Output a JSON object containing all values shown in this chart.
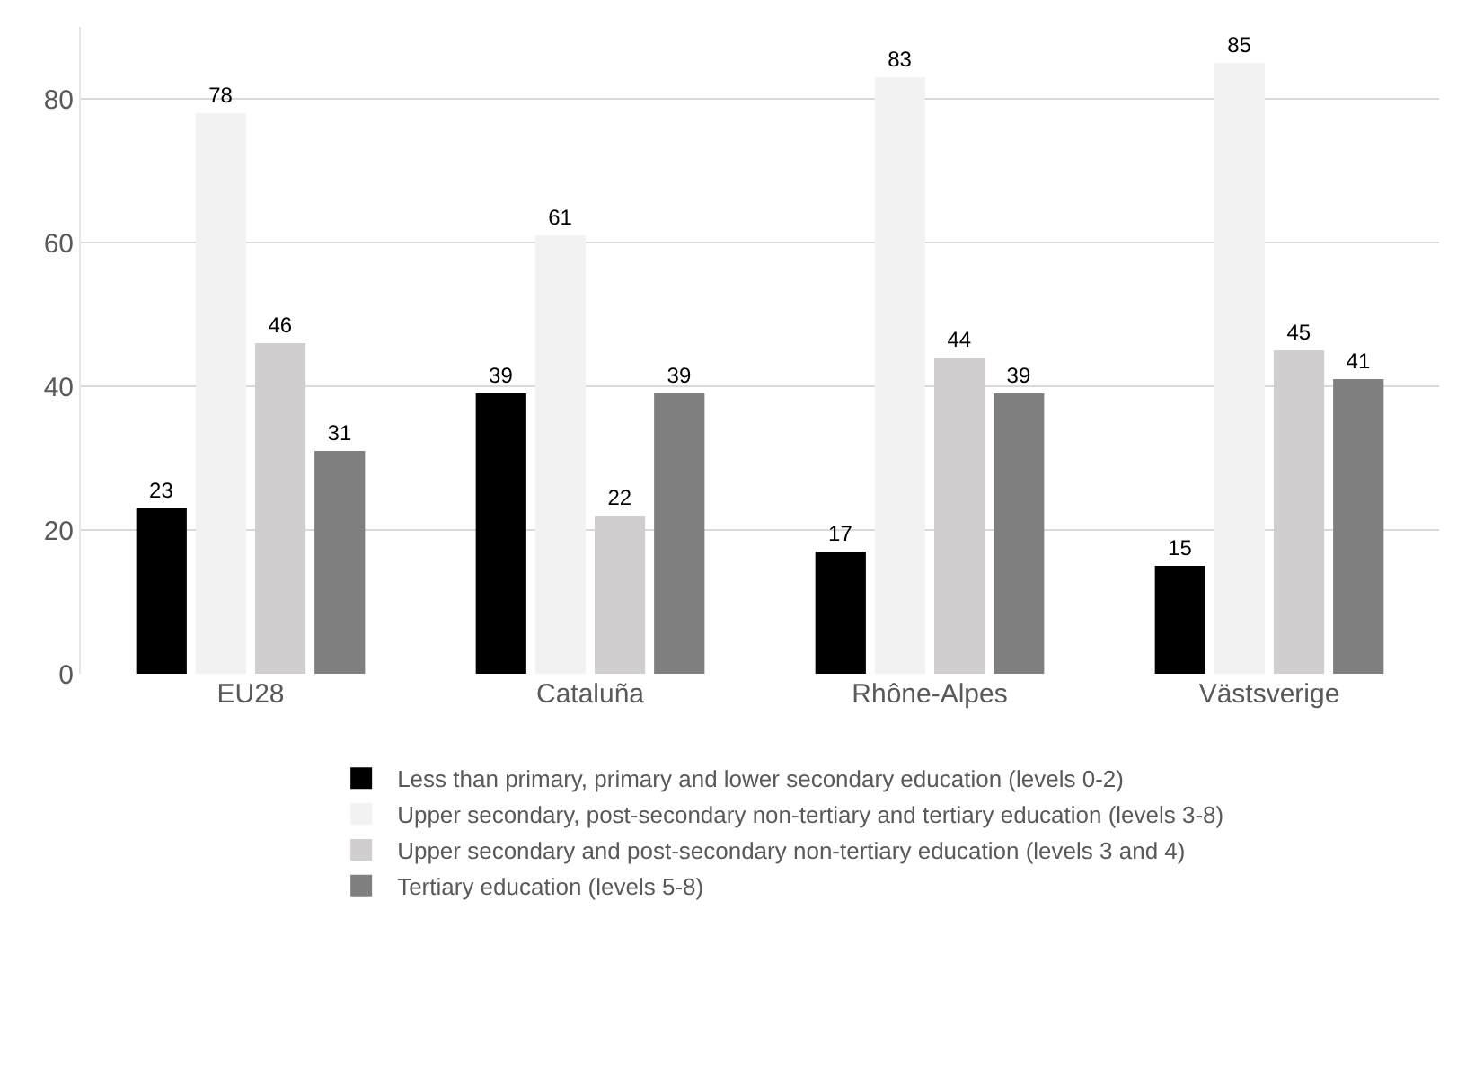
{
  "chart_data": {
    "type": "bar",
    "categories": [
      "EU28",
      "Cataluña",
      "Rhône-Alpes",
      "Västsverige"
    ],
    "series": [
      {
        "name": "Less than primary, primary and lower secondary education (levels 0-2)",
        "color": "#000000",
        "values": [
          23,
          39,
          17,
          15
        ]
      },
      {
        "name": "Upper secondary, post-secondary non-tertiary and tertiary education (levels 3-8)",
        "color": "#f2f2f2",
        "values": [
          78,
          61,
          83,
          85
        ]
      },
      {
        "name": "Upper secondary and post-secondary non-tertiary education (levels 3 and 4)",
        "color": "#d0cece",
        "values": [
          46,
          22,
          44,
          45
        ]
      },
      {
        "name": "Tertiary education (levels 5-8)",
        "color": "#7f7f7f",
        "values": [
          31,
          39,
          39,
          41
        ]
      }
    ],
    "ylim": [
      0,
      90
    ],
    "yticks": [
      0,
      20,
      40,
      60,
      80
    ],
    "grid": "y",
    "legend": "bottom",
    "data_labels": true
  }
}
